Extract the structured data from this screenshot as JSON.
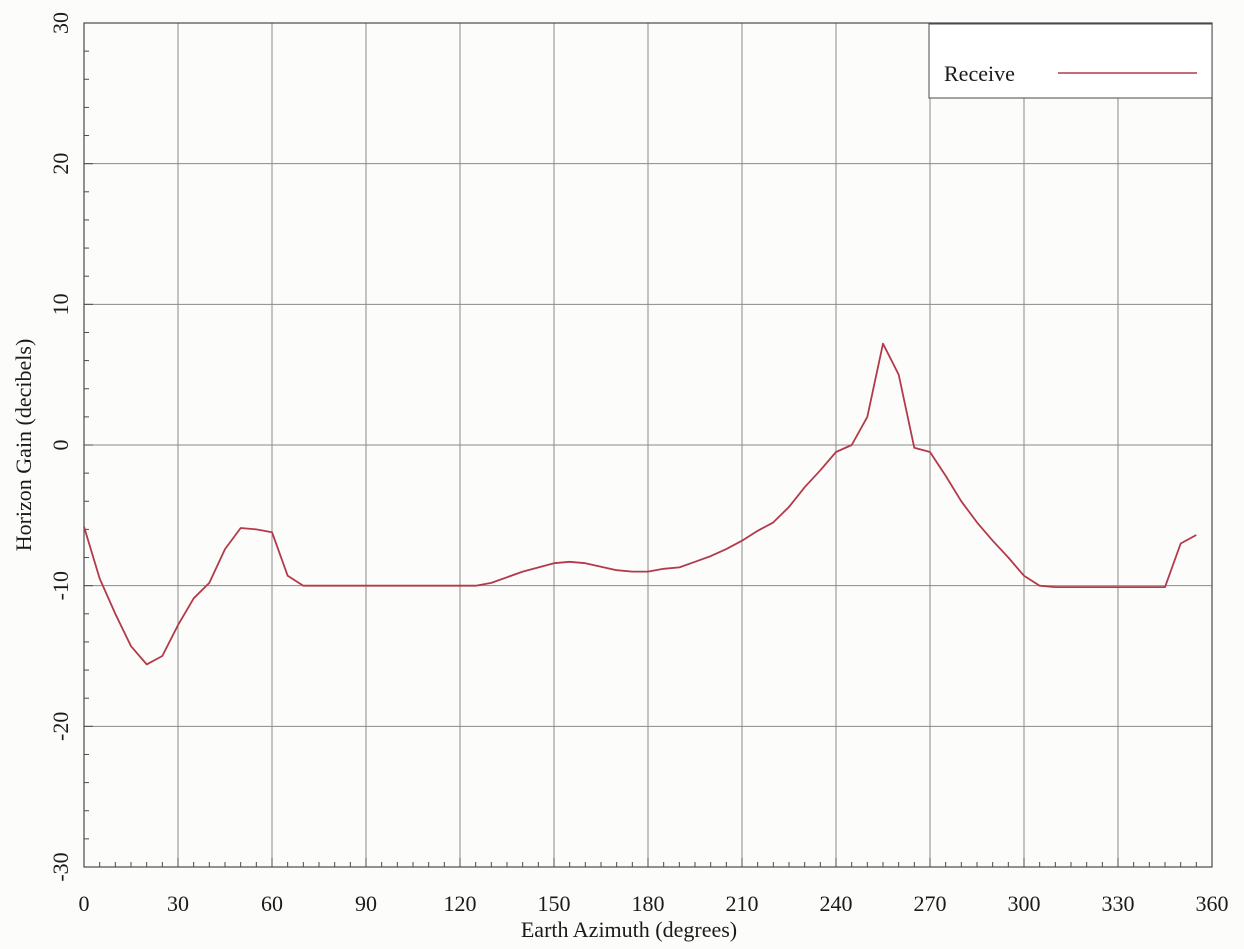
{
  "chart_data": {
    "type": "line",
    "title": "",
    "xlabel": "Earth Azimuth (degrees)",
    "ylabel": "Horizon Gain (decibels)",
    "xlim": [
      0,
      360
    ],
    "ylim": [
      -30,
      30
    ],
    "xticks": [
      0,
      30,
      60,
      90,
      120,
      150,
      180,
      210,
      240,
      270,
      300,
      330,
      360
    ],
    "yticks": [
      -30,
      -20,
      -10,
      0,
      10,
      20,
      30
    ],
    "xtick_labels": [
      "0",
      "30",
      "60",
      "90",
      "120",
      "150",
      "180",
      "210",
      "240",
      "270",
      "300",
      "330",
      "360"
    ],
    "ytick_labels": [
      "-30",
      "-20",
      "-10",
      "0",
      "10",
      "20",
      "30"
    ],
    "grid": true,
    "legend": {
      "position": "top-right"
    },
    "colors": {
      "series": "#b23a4a",
      "grid": "#8a8a8a",
      "axis": "#4a4a4a"
    },
    "series": [
      {
        "name": "Receive",
        "x": [
          0,
          5,
          10,
          15,
          20,
          25,
          30,
          35,
          40,
          45,
          50,
          55,
          60,
          65,
          70,
          75,
          80,
          90,
          100,
          110,
          120,
          125,
          130,
          140,
          150,
          155,
          160,
          170,
          175,
          180,
          185,
          190,
          195,
          200,
          205,
          210,
          215,
          220,
          225,
          230,
          235,
          240,
          245,
          250,
          255,
          260,
          265,
          270,
          275,
          280,
          285,
          290,
          295,
          300,
          305,
          310,
          320,
          330,
          340,
          345,
          350,
          355
        ],
        "values": [
          -5.8,
          -9.5,
          -12.0,
          -14.3,
          -15.6,
          -15.0,
          -12.8,
          -10.9,
          -9.8,
          -7.4,
          -5.9,
          -6.0,
          -6.2,
          -9.3,
          -10.0,
          -10.0,
          -10.0,
          -10.0,
          -10.0,
          -10.0,
          -10.0,
          -10.0,
          -9.8,
          -9.0,
          -8.4,
          -8.3,
          -8.4,
          -8.9,
          -9.0,
          -9.0,
          -8.8,
          -8.7,
          -8.3,
          -7.9,
          -7.4,
          -6.8,
          -6.1,
          -5.5,
          -4.4,
          -3.0,
          -1.8,
          -0.5,
          0.0,
          2.0,
          7.2,
          5.0,
          -0.2,
          -0.5,
          -2.2,
          -4.0,
          -5.5,
          -6.8,
          -8.0,
          -9.3,
          -10.0,
          -10.1,
          -10.1,
          -10.1,
          -10.1,
          -10.1,
          -7.0,
          -6.4
        ]
      }
    ]
  }
}
